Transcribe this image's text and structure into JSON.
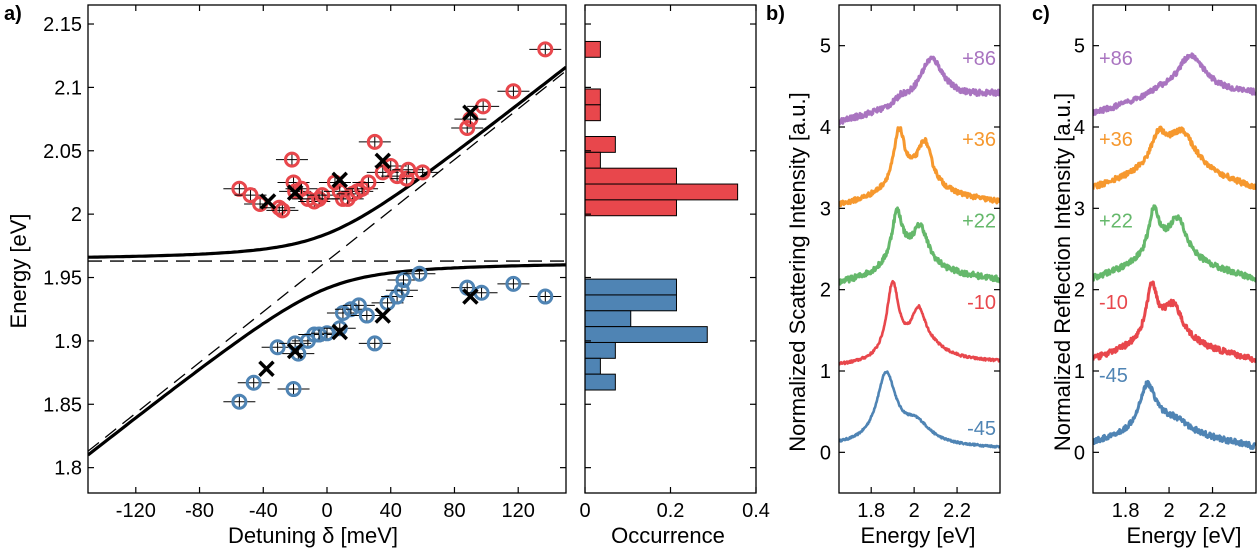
{
  "chart_data": [
    {
      "type": "scatter",
      "panel_label": "a)",
      "xlabel": "Detuning δ [meV]",
      "ylabel": "Energy [eV]",
      "xlim": [
        -150,
        150
      ],
      "ylim": [
        1.78,
        2.165
      ],
      "xticks": [
        -120,
        -80,
        -40,
        0,
        40,
        80,
        120
      ],
      "yticks": [
        1.8,
        1.85,
        1.9,
        1.95,
        2,
        2.05,
        2.1,
        2.15
      ],
      "ytick_labels": [
        "1.8",
        "1.85",
        "1.9",
        "1.95",
        "2",
        "2.05",
        "2.1",
        "2.15"
      ],
      "model": {
        "E0": 1.963,
        "g": 0.0215,
        "slope": 0.001
      },
      "upper_points": [
        [
          -55,
          2.02
        ],
        [
          -48,
          2.015
        ],
        [
          -42,
          2.008
        ],
        [
          -30,
          2.005
        ],
        [
          -28,
          2.003
        ],
        [
          -22,
          2.043
        ],
        [
          -21,
          2.025
        ],
        [
          -20,
          2.018
        ],
        [
          -16,
          2.02
        ],
        [
          -12,
          2.012
        ],
        [
          -8,
          2.01
        ],
        [
          -5,
          2.012
        ],
        [
          -3,
          2.015
        ],
        [
          5,
          2.025
        ],
        [
          8,
          2.018
        ],
        [
          10,
          2.012
        ],
        [
          13,
          2.012
        ],
        [
          16,
          2.016
        ],
        [
          19,
          2.018
        ],
        [
          22,
          2.02
        ],
        [
          26,
          2.025
        ],
        [
          30,
          2.057
        ],
        [
          35,
          2.033
        ],
        [
          40,
          2.038
        ],
        [
          44,
          2.03
        ],
        [
          50,
          2.028
        ],
        [
          51,
          2.035
        ],
        [
          60,
          2.033
        ],
        [
          88,
          2.068
        ],
        [
          90,
          2.075
        ],
        [
          98,
          2.085
        ],
        [
          117,
          2.097
        ],
        [
          137,
          2.13
        ]
      ],
      "lower_points": [
        [
          -55,
          1.852
        ],
        [
          -46,
          1.867
        ],
        [
          -31,
          1.895
        ],
        [
          -21,
          1.862
        ],
        [
          -20,
          1.898
        ],
        [
          -18,
          1.89
        ],
        [
          -12,
          1.9
        ],
        [
          -8,
          1.905
        ],
        [
          -5,
          1.905
        ],
        [
          0,
          1.906
        ],
        [
          8,
          1.91
        ],
        [
          10,
          1.922
        ],
        [
          15,
          1.925
        ],
        [
          20,
          1.928
        ],
        [
          25,
          1.92
        ],
        [
          30,
          1.898
        ],
        [
          38,
          1.93
        ],
        [
          44,
          1.935
        ],
        [
          47,
          1.94
        ],
        [
          48,
          1.948
        ],
        [
          58,
          1.953
        ],
        [
          88,
          1.942
        ],
        [
          97,
          1.938
        ],
        [
          117,
          1.945
        ],
        [
          137,
          1.935
        ]
      ],
      "cross_markers": [
        [
          -37,
          2.01
        ],
        [
          -20,
          2.017
        ],
        [
          8,
          2.027
        ],
        [
          35,
          2.042
        ],
        [
          90,
          2.08
        ],
        [
          -38,
          1.878
        ],
        [
          -20,
          1.892
        ],
        [
          8,
          1.907
        ],
        [
          35,
          1.92
        ],
        [
          90,
          1.935
        ]
      ],
      "colors": {
        "upper": "#e8474c",
        "lower": "#4f84b4",
        "cross": "#000000"
      }
    },
    {
      "type": "bar",
      "orientation": "horizontal",
      "xlabel": "Occurrence",
      "xlim": [
        0,
        0.4
      ],
      "xticks": [
        0,
        0.2,
        0.4
      ],
      "xtick_labels": [
        "0",
        "0.2",
        "0.4"
      ],
      "bin_width": 0.0125,
      "upper_bins": [
        {
          "y": 2.13,
          "value": 0.036
        },
        {
          "y": 2.0925,
          "value": 0.036
        },
        {
          "y": 2.08,
          "value": 0.036
        },
        {
          "y": 2.055,
          "value": 0.071
        },
        {
          "y": 2.0425,
          "value": 0.036
        },
        {
          "y": 2.03,
          "value": 0.214
        },
        {
          "y": 2.0175,
          "value": 0.357
        },
        {
          "y": 2.005,
          "value": 0.214
        }
      ],
      "lower_bins": [
        {
          "y": 1.9425,
          "value": 0.214
        },
        {
          "y": 1.93,
          "value": 0.214
        },
        {
          "y": 1.9175,
          "value": 0.107
        },
        {
          "y": 1.905,
          "value": 0.286
        },
        {
          "y": 1.8925,
          "value": 0.071
        },
        {
          "y": 1.88,
          "value": 0.036
        },
        {
          "y": 1.8675,
          "value": 0.071
        }
      ],
      "colors": {
        "upper": "#e8474c",
        "lower": "#4f84b4"
      }
    },
    {
      "type": "line",
      "panel_label": "b)",
      "xlabel": "Energy [eV]",
      "ylabel": "Normalized Scattering Intensity [a.u.]",
      "xlim": [
        1.65,
        2.4
      ],
      "ylim": [
        -0.5,
        5.5
      ],
      "xticks": [
        1.8,
        2.0,
        2.2
      ],
      "xtick_labels": [
        "1.8",
        "2",
        "2.2"
      ],
      "yticks": [
        0,
        1,
        2,
        3,
        4,
        5
      ],
      "label_side": "right",
      "series": [
        {
          "name": "-45",
          "color": "#4f84b4",
          "offset": 0,
          "noise": 0.012,
          "baseline": [
            0.08,
            0.08,
            0.05
          ],
          "peaks": [
            {
              "x0": 1.87,
              "w": 0.055,
              "a": 0.85
            },
            {
              "x0": 2.01,
              "w": 0.08,
              "a": 0.25
            }
          ]
        },
        {
          "name": "-10",
          "color": "#e8474c",
          "offset": 1,
          "noise": 0.015,
          "baseline": [
            0.05,
            0.1,
            0.1
          ],
          "peaks": [
            {
              "x0": 1.9,
              "w": 0.035,
              "a": 0.9
            },
            {
              "x0": 2.02,
              "w": 0.04,
              "a": 0.45
            },
            {
              "x0": 2.05,
              "w": 0.12,
              "a": 0.2
            }
          ]
        },
        {
          "name": "+22",
          "color": "#65b86b",
          "offset": 2,
          "noise": 0.035,
          "baseline": [
            0.05,
            0.2,
            0.1
          ],
          "peaks": [
            {
              "x0": 1.92,
              "w": 0.03,
              "a": 0.6
            },
            {
              "x0": 2.03,
              "w": 0.04,
              "a": 0.4
            },
            {
              "x0": 1.98,
              "w": 0.13,
              "a": 0.25
            }
          ]
        },
        {
          "name": "+36",
          "color": "#f6982e",
          "offset": 3,
          "noise": 0.03,
          "baseline": [
            0.0,
            0.15,
            0.05
          ],
          "peaks": [
            {
              "x0": 1.93,
              "w": 0.03,
              "a": 0.65
            },
            {
              "x0": 2.05,
              "w": 0.04,
              "a": 0.5
            },
            {
              "x0": 1.99,
              "w": 0.14,
              "a": 0.25
            }
          ]
        },
        {
          "name": "+86",
          "color": "#a974c0",
          "offset": 4,
          "noise": 0.035,
          "baseline": [
            0.05,
            0.3,
            0.4
          ],
          "peaks": [
            {
              "x0": 2.08,
              "w": 0.07,
              "a": 0.55
            },
            {
              "x0": 1.94,
              "w": 0.03,
              "a": 0.08
            }
          ]
        }
      ]
    },
    {
      "type": "line",
      "panel_label": "c)",
      "xlabel": "Energy [eV]",
      "ylabel": "Normalized Reflection Intensity [a.u.]",
      "xlim": [
        1.65,
        2.4
      ],
      "ylim": [
        -0.5,
        5.5
      ],
      "xticks": [
        1.8,
        2.0,
        2.2
      ],
      "xtick_labels": [
        "1.8",
        "2",
        "2.2"
      ],
      "yticks": [
        0,
        1,
        2,
        3,
        4,
        5
      ],
      "label_side": "left",
      "series": [
        {
          "name": "-45",
          "color": "#4f84b4",
          "offset": 0,
          "noise": 0.035,
          "baseline": [
            0.1,
            0.25,
            0.05
          ],
          "peaks": [
            {
              "x0": 1.9,
              "w": 0.05,
              "a": 0.6
            },
            {
              "x0": 2.02,
              "w": 0.1,
              "a": 0.2
            }
          ]
        },
        {
          "name": "-10",
          "color": "#e8474c",
          "offset": 1,
          "noise": 0.035,
          "baseline": [
            0.1,
            0.3,
            0.1
          ],
          "peaks": [
            {
              "x0": 1.92,
              "w": 0.03,
              "a": 0.6
            },
            {
              "x0": 2.02,
              "w": 0.05,
              "a": 0.35
            },
            {
              "x0": 1.98,
              "w": 0.15,
              "a": 0.25
            }
          ]
        },
        {
          "name": "+22",
          "color": "#65b86b",
          "offset": 2,
          "noise": 0.035,
          "baseline": [
            0.1,
            0.35,
            0.1
          ],
          "peaks": [
            {
              "x0": 1.93,
              "w": 0.03,
              "a": 0.55
            },
            {
              "x0": 2.04,
              "w": 0.05,
              "a": 0.45
            },
            {
              "x0": 1.99,
              "w": 0.15,
              "a": 0.2
            }
          ]
        },
        {
          "name": "+36",
          "color": "#f6982e",
          "offset": 3,
          "noise": 0.035,
          "baseline": [
            0.2,
            0.45,
            0.2
          ],
          "peaks": [
            {
              "x0": 1.95,
              "w": 0.04,
              "a": 0.35
            },
            {
              "x0": 2.06,
              "w": 0.08,
              "a": 0.45
            },
            {
              "x0": 2.0,
              "w": 0.2,
              "a": 0.15
            }
          ]
        },
        {
          "name": "+86",
          "color": "#a974c0",
          "offset": 4,
          "noise": 0.035,
          "baseline": [
            0.15,
            0.45,
            0.4
          ],
          "peaks": [
            {
              "x0": 2.1,
              "w": 0.08,
              "a": 0.5
            },
            {
              "x0": 1.95,
              "w": 0.04,
              "a": 0.06
            }
          ]
        }
      ]
    }
  ]
}
